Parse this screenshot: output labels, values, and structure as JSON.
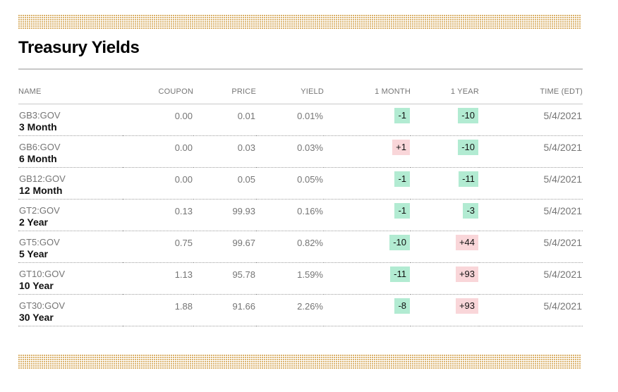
{
  "page": {
    "title": "Treasury Yields"
  },
  "theme": {
    "band_dot_color": "#cf9a3e",
    "rule_color": "#c8c8c8",
    "dotted_separator_color": "#9e9e9e",
    "header_text_color": "#757575",
    "muted_text_color": "#757575",
    "strong_text_color": "#111111",
    "badge_negative_bg": "#b2ebd2",
    "badge_positive_bg": "#f9d6d9",
    "badge_text_color": "#111111"
  },
  "table": {
    "columns": [
      {
        "key": "name",
        "label": "NAME"
      },
      {
        "key": "coupon",
        "label": "COUPON"
      },
      {
        "key": "price",
        "label": "PRICE"
      },
      {
        "key": "yield",
        "label": "YIELD"
      },
      {
        "key": "one_month",
        "label": "1 MONTH"
      },
      {
        "key": "one_year",
        "label": "1 YEAR"
      },
      {
        "key": "time",
        "label": "TIME (EDT)"
      }
    ],
    "rows": [
      {
        "ticker": "GB3:GOV",
        "name": "3 Month",
        "coupon": "0.00",
        "price": "0.01",
        "yield": "0.01%",
        "one_month": "-1",
        "one_year": "-10",
        "time": "5/4/2021"
      },
      {
        "ticker": "GB6:GOV",
        "name": "6 Month",
        "coupon": "0.00",
        "price": "0.03",
        "yield": "0.03%",
        "one_month": "+1",
        "one_year": "-10",
        "time": "5/4/2021"
      },
      {
        "ticker": "GB12:GOV",
        "name": "12 Month",
        "coupon": "0.00",
        "price": "0.05",
        "yield": "0.05%",
        "one_month": "-1",
        "one_year": "-11",
        "time": "5/4/2021"
      },
      {
        "ticker": "GT2:GOV",
        "name": "2 Year",
        "coupon": "0.13",
        "price": "99.93",
        "yield": "0.16%",
        "one_month": "-1",
        "one_year": "-3",
        "time": "5/4/2021"
      },
      {
        "ticker": "GT5:GOV",
        "name": "5 Year",
        "coupon": "0.75",
        "price": "99.67",
        "yield": "0.82%",
        "one_month": "-10",
        "one_year": "+44",
        "time": "5/4/2021"
      },
      {
        "ticker": "GT10:GOV",
        "name": "10 Year",
        "coupon": "1.13",
        "price": "95.78",
        "yield": "1.59%",
        "one_month": "-11",
        "one_year": "+93",
        "time": "5/4/2021"
      },
      {
        "ticker": "GT30:GOV",
        "name": "30 Year",
        "coupon": "1.88",
        "price": "91.66",
        "yield": "2.26%",
        "one_month": "-8",
        "one_year": "+93",
        "time": "5/4/2021"
      }
    ]
  }
}
